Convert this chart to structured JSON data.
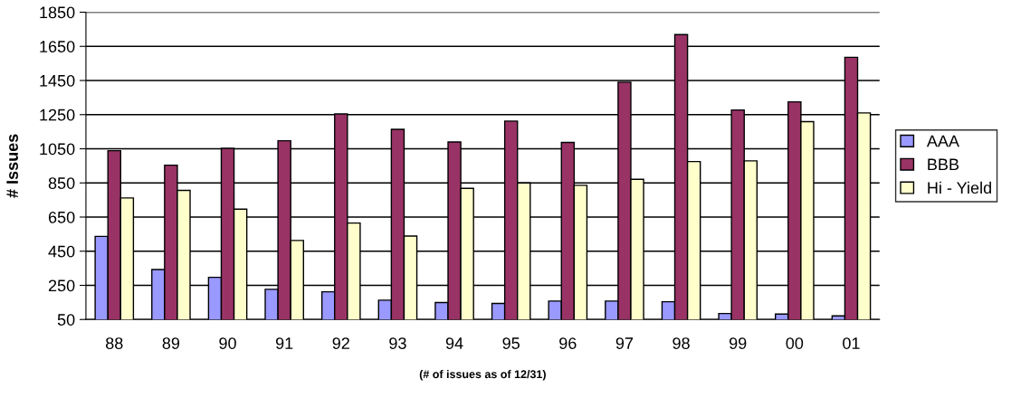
{
  "chart_data": {
    "type": "bar",
    "xlabel": "(# of issues as of 12/31)",
    "ylabel": "# Issues",
    "categories": [
      "88",
      "89",
      "90",
      "91",
      "92",
      "93",
      "94",
      "95",
      "96",
      "97",
      "98",
      "99",
      "00",
      "01"
    ],
    "series": [
      {
        "name": "AAA",
        "color": "#9999ff",
        "values": [
          537,
          343,
          297,
          227,
          212,
          163,
          149,
          144,
          158,
          158,
          154,
          85,
          82,
          71
        ]
      },
      {
        "name": "BBB",
        "color": "#993366",
        "values": [
          1039,
          954,
          1053,
          1097,
          1254,
          1164,
          1090,
          1212,
          1087,
          1440,
          1719,
          1277,
          1325,
          1586
        ]
      },
      {
        "name": "Hi - Yield",
        "color": "#ffffcc",
        "values": [
          762,
          806,
          696,
          513,
          615,
          539,
          818,
          850,
          836,
          871,
          975,
          979,
          1209,
          1260
        ]
      }
    ],
    "ylim": [
      50,
      1850
    ],
    "yticks": [
      50,
      250,
      450,
      650,
      850,
      1050,
      1250,
      1450,
      1650,
      1850
    ],
    "grid": "y",
    "legend": "right"
  }
}
